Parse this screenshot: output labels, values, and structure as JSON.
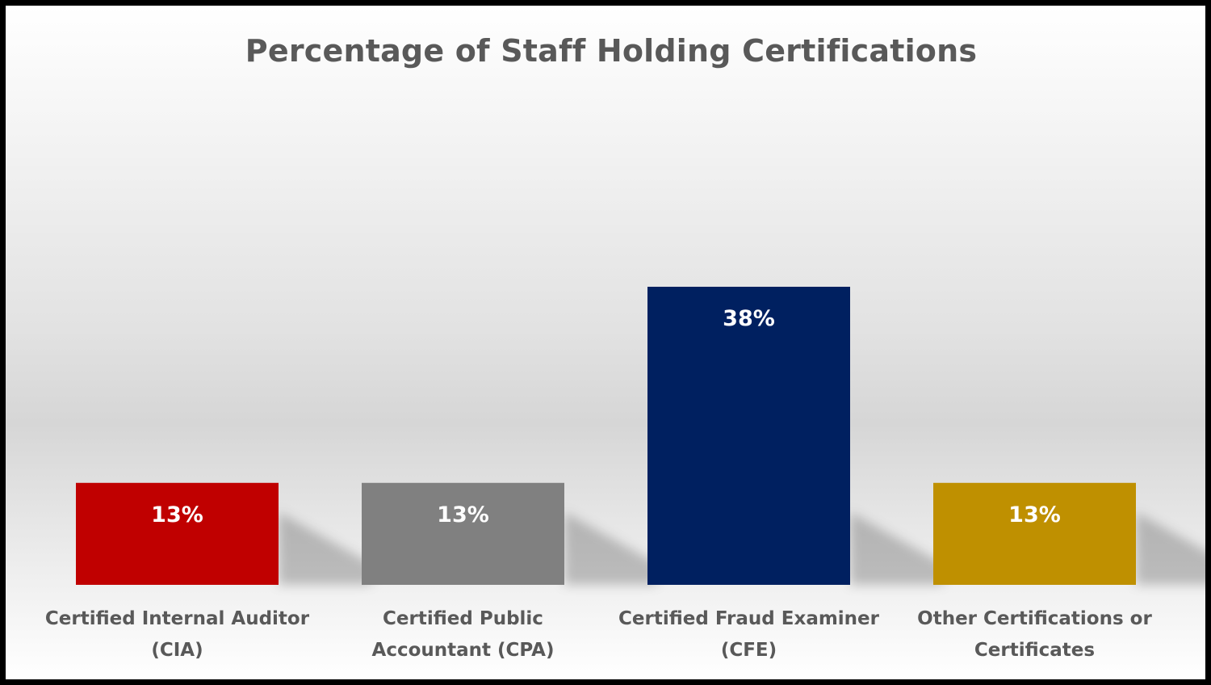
{
  "chart_data": {
    "type": "bar",
    "title": "Percentage of Staff Holding Certifications",
    "categories": [
      [
        "Certified Internal Auditor",
        "(CIA)"
      ],
      [
        "Certified Public",
        "Accountant (CPA)"
      ],
      [
        "Certified Fraud Examiner",
        "(CFE)"
      ],
      [
        "Other Certifications or",
        "Certificates"
      ]
    ],
    "values": [
      13,
      13,
      38,
      13
    ],
    "data_labels": [
      "13%",
      "13%",
      "38%",
      "13%"
    ],
    "colors": [
      "#C00000",
      "#808080",
      "#002060",
      "#BF9000"
    ],
    "value_unit": "%",
    "ylim": [
      0,
      50
    ],
    "grid": false,
    "legend": "none",
    "axes_visible": false
  }
}
